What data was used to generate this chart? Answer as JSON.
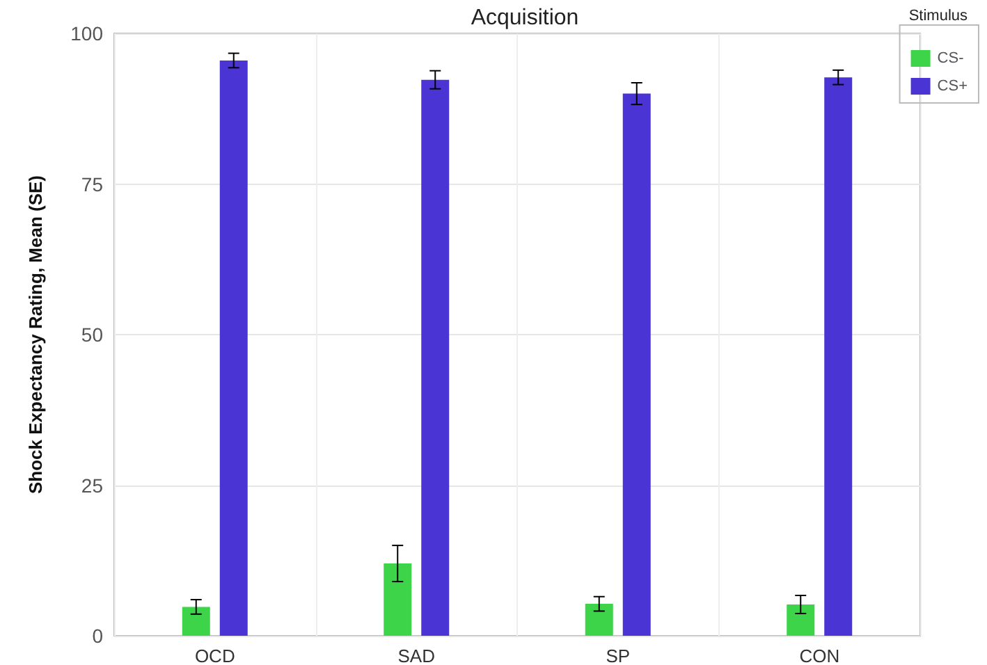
{
  "chart_data": {
    "type": "bar",
    "title": "Acquisition",
    "ylabel": "Shock Expectancy Rating, Mean (SE)",
    "legend_title": "Stimulus",
    "categories": [
      "OCD",
      "SAD",
      "SP",
      "CON"
    ],
    "series": [
      {
        "name": "CS-",
        "color": "#3dd44a",
        "values": [
          4.8,
          12,
          5.3,
          5.2
        ],
        "errors": [
          1.2,
          3,
          1.2,
          1.5
        ]
      },
      {
        "name": "CS+",
        "color": "#4a35d4",
        "values": [
          95.5,
          92.3,
          90,
          92.7
        ],
        "errors": [
          1.2,
          1.5,
          1.8,
          1.2
        ]
      }
    ],
    "ylim": [
      0,
      100
    ],
    "yticks": [
      0,
      25,
      50,
      75,
      100
    ],
    "grid": true,
    "legend": "top right"
  }
}
